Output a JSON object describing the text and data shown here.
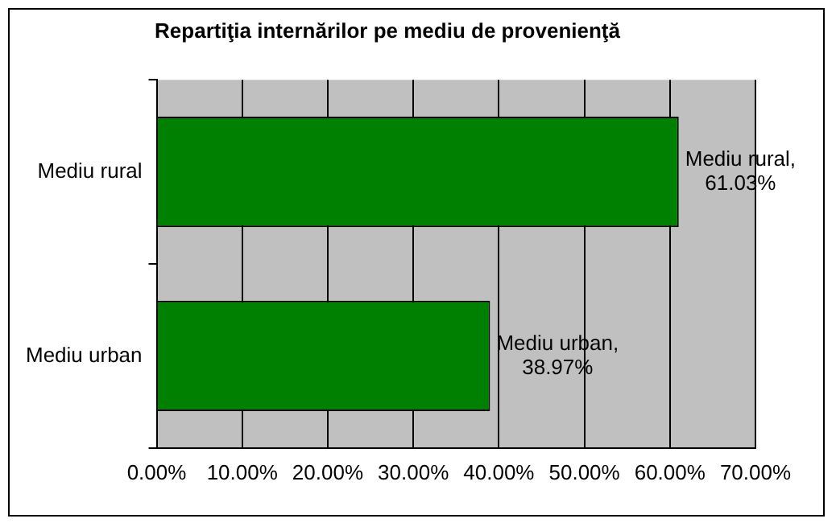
{
  "chart_data": {
    "type": "bar",
    "orientation": "horizontal",
    "title": "Repartiţia internărilor pe mediu de provenienţă",
    "categories": [
      "Mediu rural",
      "Mediu urban"
    ],
    "values": [
      61.03,
      38.97
    ],
    "color": "#008000",
    "value_labels": [
      "Mediu rural, 61.03%",
      "Mediu urban, 38.97%"
    ],
    "xlim": [
      0,
      70
    ],
    "xticks": [
      {
        "value": 0,
        "label": "0.00%"
      },
      {
        "value": 10,
        "label": "10.00%"
      },
      {
        "value": 20,
        "label": "20.00%"
      },
      {
        "value": 30,
        "label": "30.00%"
      },
      {
        "value": 40,
        "label": "40.00%"
      },
      {
        "value": 50,
        "label": "50.00%"
      },
      {
        "value": 60,
        "label": "60.00%"
      },
      {
        "value": 70,
        "label": "70.00%"
      }
    ],
    "grid": "x",
    "legend": false
  }
}
